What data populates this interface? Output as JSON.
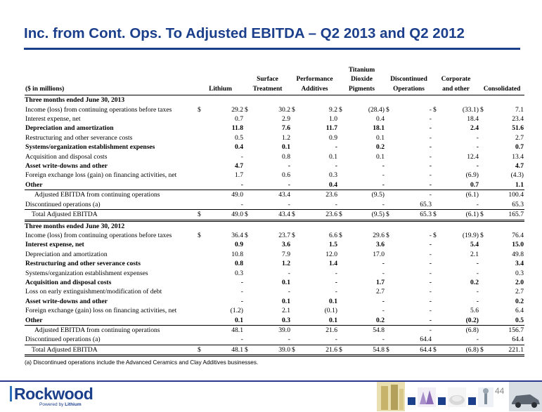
{
  "title": "Inc. from Cont. Ops. To Adjusted EBITDA – Q2 2013 and Q2 2012",
  "columns": {
    "label": "($ in millions)",
    "lithium": "Lithium",
    "surface_1": "Surface",
    "surface_2": "Treatment",
    "performance_1": "Performance",
    "performance_2": "Additives",
    "tio2_1": "Titanium",
    "tio2_2": "Dioxide",
    "tio2_3": "Pigments",
    "discontinued_1": "Discontinued",
    "discontinued_2": "Operations",
    "corporate_1": "Corporate",
    "corporate_2": "and other",
    "consolidated": "Consolidated"
  },
  "section_2013": {
    "heading": "Three months ended June 30, 2013",
    "rows": [
      {
        "label": "Income (loss) from continuing operations before taxes",
        "values": [
          "29.2",
          "30.2",
          "9.2",
          "(28.4)",
          "-",
          "(33.1)",
          "7.1"
        ],
        "symbol": "$"
      },
      {
        "label": "Interest expense, net",
        "values": [
          "0.7",
          "2.9",
          "1.0",
          "0.4",
          "-",
          "18.4",
          "23.4"
        ]
      },
      {
        "label": "Depreciation and amortization",
        "values": [
          "11.8",
          "7.6",
          "11.7",
          "18.1",
          "-",
          "2.4",
          "51.6"
        ]
      },
      {
        "label": "Restructuring and other severance costs",
        "values": [
          "0.5",
          "1.2",
          "0.9",
          "0.1",
          "-",
          "-",
          "2.7"
        ]
      },
      {
        "label": "Systems/organization establishment expenses",
        "values": [
          "0.4",
          "0.1",
          "-",
          "0.2",
          "-",
          "-",
          "0.7"
        ]
      },
      {
        "label": "Acquisition and disposal costs",
        "values": [
          "-",
          "0.8",
          "0.1",
          "0.1",
          "-",
          "12.4",
          "13.4"
        ]
      },
      {
        "label": "Asset write-downs and other",
        "values": [
          "4.7",
          "-",
          "-",
          "-",
          "-",
          "-",
          "4.7"
        ]
      },
      {
        "label": "Foreign exchange loss (gain) on financing activities, net",
        "values": [
          "1.7",
          "0.6",
          "0.3",
          "-",
          "-",
          "(6.9)",
          "(4.3)"
        ]
      },
      {
        "label": "Other",
        "values": [
          "-",
          "-",
          "0.4",
          "-",
          "-",
          "0.7",
          "1.1"
        ]
      }
    ],
    "subtotal": {
      "label": "Adjusted EBITDA from continuing operations",
      "values": [
        "49.0",
        "43.4",
        "23.6",
        "(9.5)",
        "-",
        "(6.1)",
        "100.4"
      ]
    },
    "discontinued": {
      "label": "Discontinued operations (a)",
      "values": [
        "-",
        "-",
        "-",
        "-",
        "65.3",
        "-",
        "65.3"
      ]
    },
    "total": {
      "label": "Total Adjusted EBITDA",
      "values": [
        "49.0",
        "43.4",
        "23.6",
        "(9.5)",
        "65.3",
        "(6.1)",
        "165.7"
      ],
      "symbol": "$"
    }
  },
  "section_2012": {
    "heading": "Three months ended June 30, 2012",
    "rows": [
      {
        "label": "Income (loss) from continuing operations before taxes",
        "values": [
          "36.4",
          "23.7",
          "6.6",
          "29.6",
          "-",
          "(19.9)",
          "76.4"
        ],
        "symbol": "$"
      },
      {
        "label": "Interest expense, net",
        "values": [
          "0.9",
          "3.6",
          "1.5",
          "3.6",
          "-",
          "5.4",
          "15.0"
        ]
      },
      {
        "label": "Depreciation and amortization",
        "values": [
          "10.8",
          "7.9",
          "12.0",
          "17.0",
          "-",
          "2.1",
          "49.8"
        ]
      },
      {
        "label": "Restructuring and other severance costs",
        "values": [
          "0.8",
          "1.2",
          "1.4",
          "-",
          "-",
          "-",
          "3.4"
        ]
      },
      {
        "label": "Systems/organization establishment expenses",
        "values": [
          "0.3",
          "-",
          "-",
          "-",
          "-",
          "-",
          "0.3"
        ]
      },
      {
        "label": "Acquisition and disposal costs",
        "values": [
          "-",
          "0.1",
          "-",
          "1.7",
          "-",
          "0.2",
          "2.0"
        ]
      },
      {
        "label": "Loss on early extinguishment/modification of debt",
        "values": [
          "-",
          "-",
          "-",
          "2.7",
          "-",
          "-",
          "2.7"
        ]
      },
      {
        "label": "Asset write-downs and other",
        "values": [
          "-",
          "0.1",
          "0.1",
          "-",
          "-",
          "-",
          "0.2"
        ]
      },
      {
        "label": "Foreign exchange (gain) loss on financing activities, net",
        "values": [
          "(1.2)",
          "2.1",
          "(0.1)",
          "-",
          "-",
          "5.6",
          "6.4"
        ]
      },
      {
        "label": "Other",
        "values": [
          "0.1",
          "0.3",
          "0.1",
          "0.2",
          "-",
          "(0.2)",
          "0.5"
        ]
      }
    ],
    "subtotal": {
      "label": "Adjusted EBITDA from continuing operations",
      "values": [
        "48.1",
        "39.0",
        "21.6",
        "54.8",
        "-",
        "(6.8)",
        "156.7"
      ]
    },
    "discontinued": {
      "label": "Discontinued operations (a)",
      "values": [
        "-",
        "-",
        "-",
        "-",
        "64.4",
        "-",
        "64.4"
      ]
    },
    "total": {
      "label": "Total Adjusted EBITDA",
      "values": [
        "48.1",
        "39.0",
        "21.6",
        "54.8",
        "64.4",
        "(6.8)",
        "221.1"
      ],
      "symbol": "$"
    }
  },
  "footnote": "(a) Discontinued operations include the Advanced Ceramics and Clay Additives businesses.",
  "footer": {
    "logo": "Rockwood",
    "tagline_prefix": "Powered by",
    "tagline_brand": "Lithium",
    "page_number": "44"
  },
  "colors": {
    "brand_blue": "#1c3f8c",
    "text": "#000000",
    "page_number": "#8a8a8a"
  },
  "icons": [
    "rockwood-logo-icon",
    "lithium-battery-photo-icon",
    "crystals-photo-icon",
    "pigment-powder-photo-icon",
    "wrench-photo-icon",
    "car-photo-icon"
  ]
}
